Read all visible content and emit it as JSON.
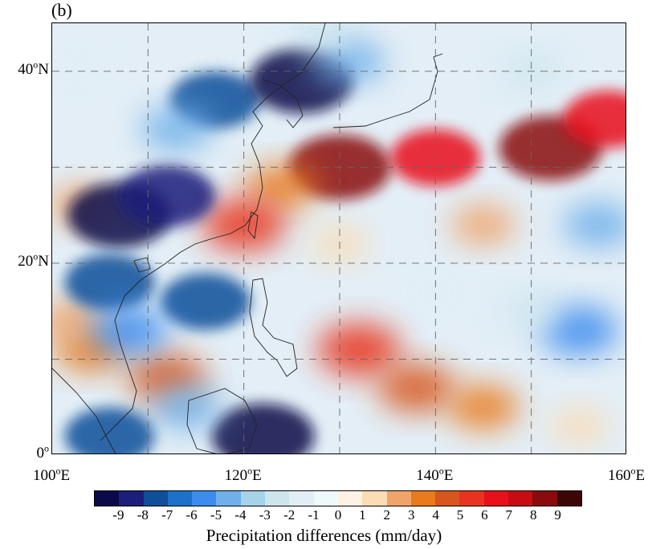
{
  "panel_label": "(b)",
  "axes": {
    "lat_labels": [
      {
        "deg": "40",
        "suffix": "N",
        "lat": 40
      },
      {
        "deg": "20",
        "suffix": "N",
        "lat": 20
      },
      {
        "deg": "0",
        "suffix": "",
        "lat": 0
      }
    ],
    "lon_labels": [
      {
        "deg": "100",
        "suffix": "E",
        "lon": 100
      },
      {
        "deg": "120",
        "suffix": "E",
        "lon": 120
      },
      {
        "deg": "140",
        "suffix": "E",
        "lon": 140
      },
      {
        "deg": "160",
        "suffix": "E",
        "lon": 160
      }
    ],
    "lon_range": [
      100,
      160
    ],
    "lat_range": [
      0,
      45
    ],
    "grid_lons": [
      110,
      120,
      130,
      140,
      150
    ],
    "grid_lats": [
      10,
      20,
      30,
      40
    ],
    "grid": "dashed"
  },
  "colorbar": {
    "title": "Precipitation differences (mm/day)",
    "tick_labels": [
      "-9",
      "-8",
      "-7",
      "-6",
      "-5",
      "-4",
      "-3",
      "-2",
      "-1",
      "0",
      "1",
      "2",
      "3",
      "4",
      "5",
      "6",
      "7",
      "8",
      "9"
    ],
    "colors": [
      "#0a0a4a",
      "#1b1f7a",
      "#0f4f9a",
      "#1b72c8",
      "#3c8cef",
      "#6fb0ea",
      "#a4d3ea",
      "#cde6ee",
      "#e2eef6",
      "#eef9fb",
      "#fdf2e4",
      "#fbdcb4",
      "#efa46c",
      "#ea7a1c",
      "#d8561e",
      "#e8341e",
      "#e8101a",
      "#c80c14",
      "#8a0a0e",
      "#3c0606"
    ]
  },
  "chart_data": {
    "type": "heatmap",
    "variable": "Precipitation differences",
    "units": "mm/day",
    "lon_range": [
      100,
      160
    ],
    "lat_range": [
      0,
      45
    ],
    "levels": [
      -9,
      -8,
      -7,
      -6,
      -5,
      -4,
      -3,
      -2,
      -1,
      0,
      1,
      2,
      3,
      4,
      5,
      6,
      7,
      8,
      9
    ],
    "features": [
      {
        "lon": 152,
        "lat": 32,
        "value": 9
      },
      {
        "lon": 130,
        "lat": 30,
        "value": 9
      },
      {
        "lon": 140,
        "lat": 31,
        "value": 7
      },
      {
        "lon": 158,
        "lat": 35,
        "value": 7
      },
      {
        "lon": 124,
        "lat": 28,
        "value": 4
      },
      {
        "lon": 120,
        "lat": 24,
        "value": 6
      },
      {
        "lon": 145,
        "lat": 24,
        "value": 3
      },
      {
        "lon": 130,
        "lat": 22,
        "value": 2
      },
      {
        "lon": 103,
        "lat": 26,
        "value": 3
      },
      {
        "lon": 132,
        "lat": 11,
        "value": 6
      },
      {
        "lon": 138,
        "lat": 7,
        "value": 5
      },
      {
        "lon": 145,
        "lat": 5,
        "value": 4
      },
      {
        "lon": 112,
        "lat": 8,
        "value": 5
      },
      {
        "lon": 104,
        "lat": 11,
        "value": 4
      },
      {
        "lon": 102,
        "lat": 14,
        "value": 3
      },
      {
        "lon": 155,
        "lat": 3,
        "value": 2
      },
      {
        "lon": 117,
        "lat": 37,
        "value": -7
      },
      {
        "lon": 126,
        "lat": 39,
        "value": -9
      },
      {
        "lon": 113,
        "lat": 34,
        "value": -4
      },
      {
        "lon": 131,
        "lat": 41,
        "value": -4
      },
      {
        "lon": 107,
        "lat": 25,
        "value": -9
      },
      {
        "lon": 112,
        "lat": 27,
        "value": -8
      },
      {
        "lon": 106,
        "lat": 18,
        "value": -7
      },
      {
        "lon": 116,
        "lat": 16,
        "value": -7
      },
      {
        "lon": 108,
        "lat": 13,
        "value": -5
      },
      {
        "lon": 106,
        "lat": 2,
        "value": -7
      },
      {
        "lon": 122,
        "lat": 2,
        "value": -9
      },
      {
        "lon": 114,
        "lat": 5,
        "value": -4
      },
      {
        "lon": 157,
        "lat": 24,
        "value": -4
      },
      {
        "lon": 155,
        "lat": 13,
        "value": -5
      },
      {
        "lon": 150,
        "lat": 15,
        "value": -2
      },
      {
        "lon": 140,
        "lat": 17,
        "value": -1
      },
      {
        "lon": 150,
        "lat": 40,
        "value": -2
      },
      {
        "lon": 128,
        "lat": 44,
        "value": -2
      },
      {
        "lon": 103,
        "lat": 40,
        "value": -1
      }
    ]
  }
}
